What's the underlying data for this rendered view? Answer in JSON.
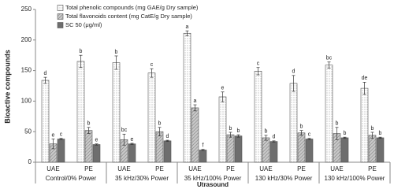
{
  "chart_data": {
    "type": "bar",
    "y_label": "Bioactive compounds",
    "x_label": "Utrasound",
    "categories": [
      "UAE",
      "PE",
      "UAE",
      "PE",
      "UAE",
      "PE",
      "UAE",
      "PE",
      "UAE",
      "PE"
    ],
    "groups": [
      "Control/0% Power",
      "35 kHz/30% Power",
      "35 kHz/100% Power",
      "130 kHz/30% Power",
      "130 kHz/100% Power"
    ],
    "series": [
      {
        "name": "Total phenolic compounds (mg GAE/g Dry sample)",
        "color": "#ffffff",
        "pattern": "dots",
        "values": [
          134,
          165,
          163,
          146,
          211,
          107,
          149,
          129,
          159,
          121
        ],
        "errors": [
          5,
          10,
          11,
          7,
          4,
          8,
          6,
          13,
          5,
          10
        ],
        "letters": [
          "d",
          "b",
          "b",
          "c",
          "a",
          "e",
          "c",
          "d",
          "bc",
          "de"
        ]
      },
      {
        "name": "Total flavonoids content (mg CatE/g Dry sample)",
        "color": "#bdbdbd",
        "pattern": "hatch",
        "values": [
          30,
          52,
          37,
          50,
          89,
          45,
          40,
          48,
          47,
          44
        ],
        "errors": [
          8,
          5,
          9,
          7,
          5,
          4,
          4,
          4,
          10,
          5
        ],
        "letters": [
          "e",
          "b",
          "bc",
          "b",
          "a",
          "b",
          "b",
          "b",
          "b",
          "b"
        ]
      },
      {
        "name": "SC 50 (μg/ml)",
        "color": "#6e6e6e",
        "pattern": "solid",
        "values": [
          38,
          29,
          30,
          35,
          20,
          43,
          34,
          38,
          40,
          40
        ],
        "errors": [
          1,
          1,
          1,
          1,
          1,
          2,
          1,
          1,
          1,
          1
        ],
        "letters": [
          "c",
          "e",
          "e",
          "d",
          "f",
          "b",
          "d",
          "c",
          "b",
          "b"
        ]
      }
    ],
    "ylim": [
      0,
      250
    ],
    "yticks": [
      0,
      50,
      100,
      150,
      200,
      250
    ],
    "grid": false,
    "legend": "top-left"
  }
}
